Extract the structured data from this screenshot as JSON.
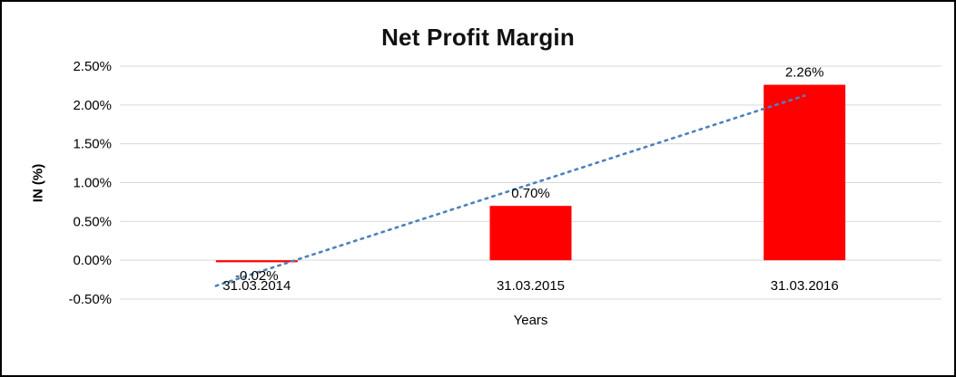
{
  "chart_data": {
    "type": "bar",
    "title": "Net Profit Margin",
    "xlabel": "Years",
    "ylabel": "IN (%)",
    "categories": [
      "31.03.2014",
      "31.03.2015",
      "31.03.2016"
    ],
    "values": [
      -0.02,
      0.7,
      2.26
    ],
    "data_labels": [
      "-0.02%",
      "0.70%",
      "2.26%"
    ],
    "ylim": [
      -0.5,
      2.5
    ],
    "yticks": [
      {
        "value": 2.5,
        "label": "2.50%"
      },
      {
        "value": 2.0,
        "label": "2.00%"
      },
      {
        "value": 1.5,
        "label": "1.50%"
      },
      {
        "value": 1.0,
        "label": "1.00%"
      },
      {
        "value": 0.5,
        "label": "0.50%"
      },
      {
        "value": 0.0,
        "label": "0.00%"
      },
      {
        "value": -0.5,
        "label": "-0.50%"
      }
    ],
    "grid": true,
    "legend": "none",
    "bar_color": "#ff0000",
    "gridline_color": "#d9d9d9",
    "text_color": "#000000",
    "trendline": {
      "type": "linear",
      "style": "dotted",
      "color": "#4f81bd"
    }
  }
}
